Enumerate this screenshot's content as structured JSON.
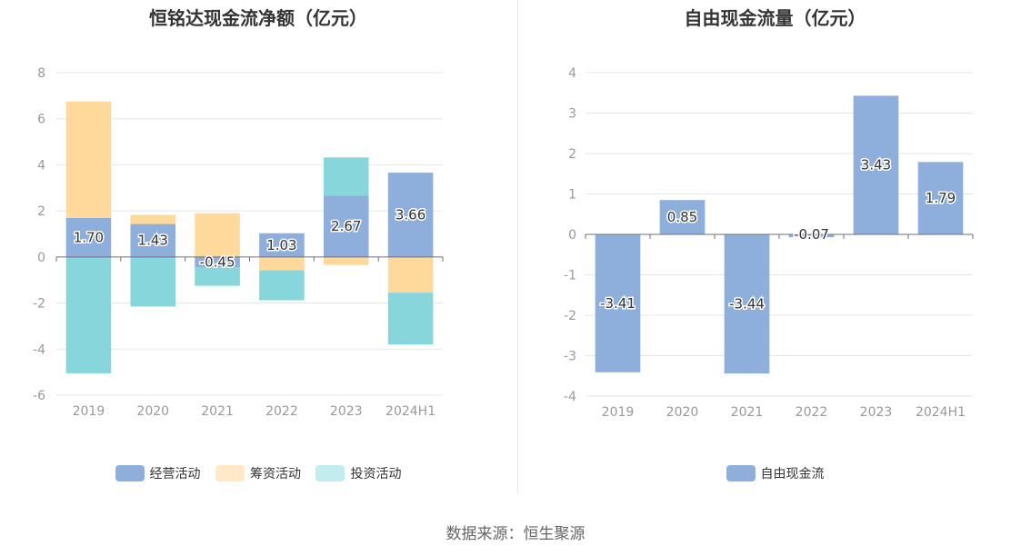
{
  "source": "数据来源：恒生聚源",
  "chart_data": [
    {
      "type": "bar",
      "stacked": true,
      "title": "恒铭达现金流净额（亿元）",
      "categories": [
        "2019",
        "2020",
        "2021",
        "2022",
        "2023",
        "2024H1"
      ],
      "ylim": [
        -6,
        8
      ],
      "yticks": [
        -6,
        -4,
        -2,
        0,
        2,
        4,
        6,
        8
      ],
      "grid": true,
      "legend_position": "bottom",
      "series": [
        {
          "name": "经营活动",
          "color": "#8eaedb",
          "values": [
            1.7,
            1.43,
            -0.45,
            1.03,
            2.67,
            3.66
          ]
        },
        {
          "name": "筹资活动",
          "color": "#ffd89c",
          "values": [
            5.05,
            0.4,
            1.9,
            -0.58,
            -0.35,
            -1.55
          ]
        },
        {
          "name": "投资活动",
          "color": "#87d6dc",
          "values": [
            -5.05,
            -2.15,
            -0.8,
            -1.3,
            1.65,
            -2.25
          ]
        }
      ],
      "data_labels": [
        "1.70",
        "1.43",
        "-0.45",
        "1.03",
        "2.67",
        "3.66"
      ],
      "legend_colors": [
        "#8eaedb",
        "#ffe9c6",
        "#c3ecee"
      ]
    },
    {
      "type": "bar",
      "title": "自由现金流量（亿元）",
      "categories": [
        "2019",
        "2020",
        "2021",
        "2022",
        "2023",
        "2024H1"
      ],
      "ylim": [
        -4,
        4
      ],
      "yticks": [
        -4,
        -3,
        -2,
        -1,
        0,
        1,
        2,
        3,
        4
      ],
      "grid": true,
      "legend_position": "bottom",
      "series": [
        {
          "name": "自由现金流",
          "color": "#8eaedb",
          "values": [
            -3.41,
            0.85,
            -3.44,
            -0.07,
            3.43,
            1.79
          ]
        }
      ],
      "data_labels": [
        "-3.41",
        "0.85",
        "-3.44",
        "-0.07",
        "3.43",
        "1.79"
      ]
    }
  ]
}
